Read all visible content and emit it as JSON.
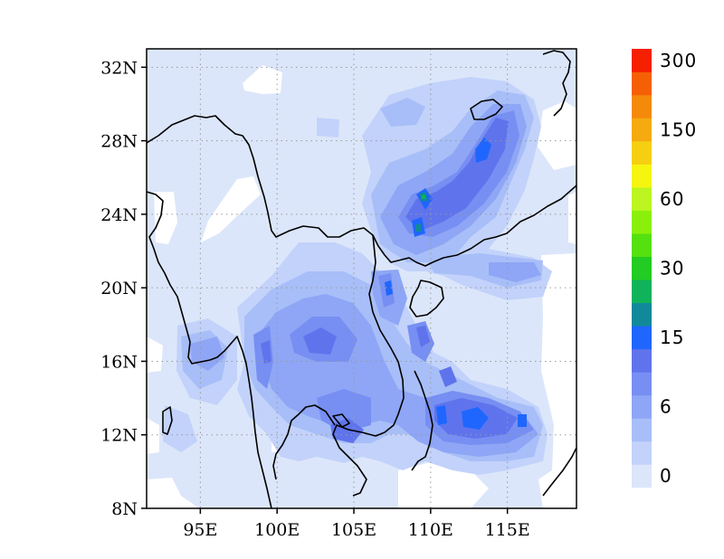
{
  "map": {
    "lon_range": [
      91.5,
      119.5
    ],
    "lat_range": [
      8,
      33
    ],
    "lon_ticks": [
      {
        "value": 95,
        "label": "95E"
      },
      {
        "value": 100,
        "label": "100E"
      },
      {
        "value": 105,
        "label": "105E"
      },
      {
        "value": 110,
        "label": "110E"
      },
      {
        "value": 115,
        "label": "115E"
      }
    ],
    "lat_ticks": [
      {
        "value": 8,
        "label": "8N"
      },
      {
        "value": 12,
        "label": "12N"
      },
      {
        "value": 16,
        "label": "16N"
      },
      {
        "value": 20,
        "label": "20N"
      },
      {
        "value": 24,
        "label": "24N"
      },
      {
        "value": 28,
        "label": "28N"
      },
      {
        "value": 32,
        "label": "32N"
      }
    ],
    "gridlines": "dotted",
    "coastlines": true,
    "colorbar": {
      "placement": "right",
      "colors": [
        "#dce6fa",
        "#c2d2fa",
        "#a8bef8",
        "#8ea6f5",
        "#778ff2",
        "#5f74ec",
        "#1f66ff",
        "#11899a",
        "#10b35a",
        "#22cc22",
        "#55e010",
        "#8af00a",
        "#bcf520",
        "#f5f510",
        "#f5d010",
        "#f5aa10",
        "#f58a0a",
        "#f56005",
        "#f52000"
      ],
      "labels": [
        {
          "index": 0,
          "text": "0"
        },
        {
          "index": 3,
          "text": "6"
        },
        {
          "index": 6,
          "text": "15"
        },
        {
          "index": 9,
          "text": "30"
        },
        {
          "index": 12,
          "text": "60"
        },
        {
          "index": 15,
          "text": "150"
        },
        {
          "index": 18,
          "text": "300"
        }
      ]
    }
  }
}
